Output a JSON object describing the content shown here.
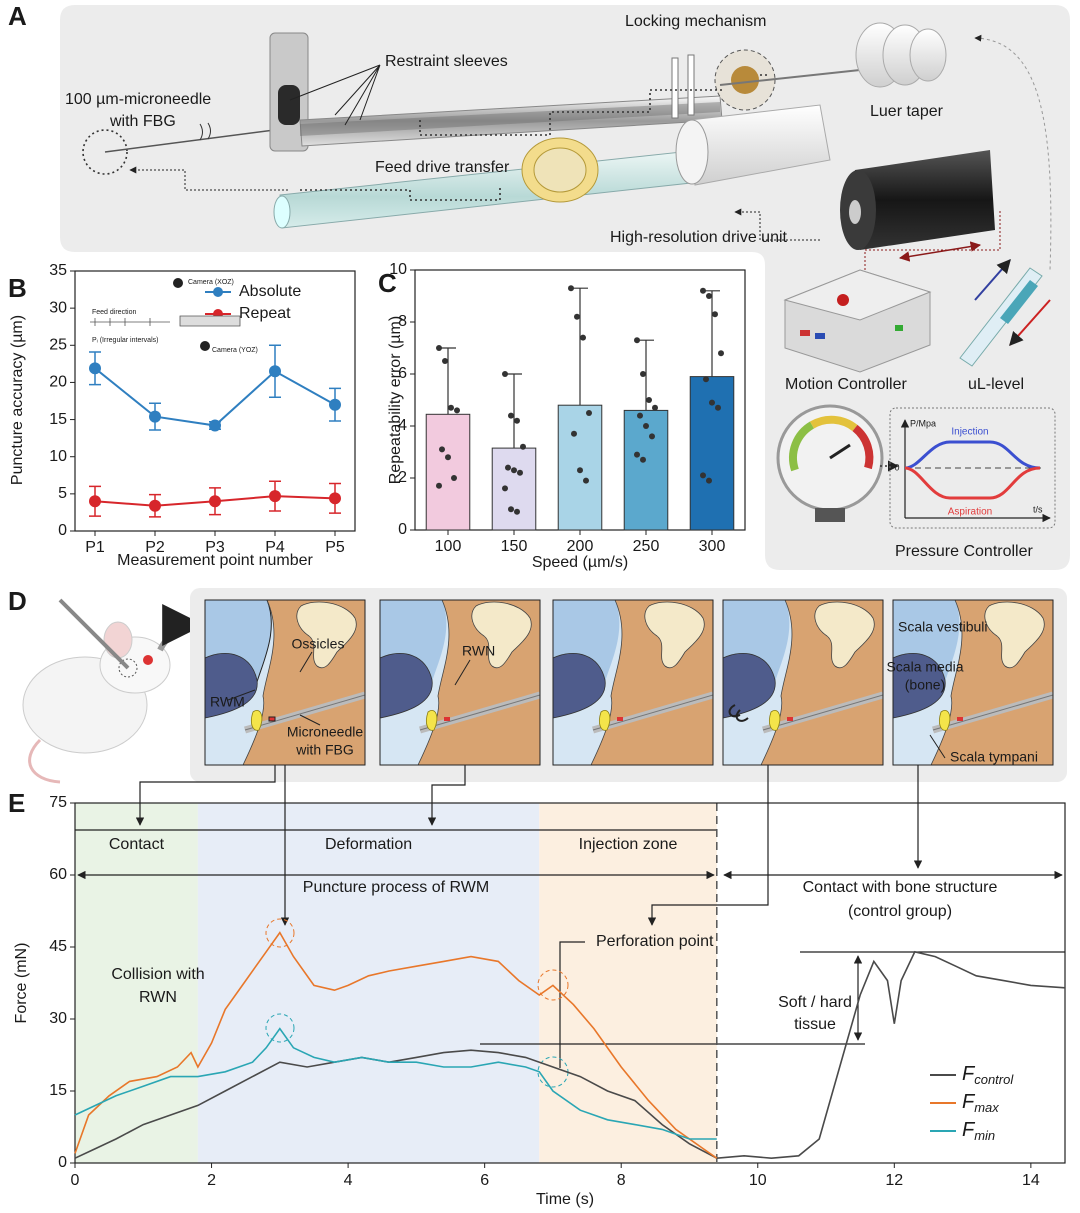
{
  "panel_a": {
    "label": "A",
    "microneedle": [
      "100 µm-microneedle",
      "with FBG"
    ],
    "restraint": "Restraint sleeves",
    "locking": "Locking mechanism",
    "luer": "Luer taper",
    "feed": "Feed drive transfer",
    "drive": "High-resolution drive unit",
    "motion": "Motion Controller",
    "ul": "uL-level",
    "pressure": "Pressure Controller",
    "inset": {
      "y_label": "P/Mpa",
      "x_label": "t/s",
      "zero": "0",
      "injection": "Injection",
      "aspiration": "Aspiration"
    }
  },
  "panel_d": {
    "label": "D",
    "ossicles": "Ossicles",
    "rwm": "RWM",
    "microneedle": [
      "Microneedle",
      "with FBG"
    ],
    "rwn": "RWN",
    "vestibuli": "Scala vestibuli",
    "media": [
      "Scala media",
      "(bone)"
    ],
    "tympani": "Scala tympani"
  },
  "chart_data": [
    {
      "panel": "B",
      "type": "line",
      "x_label": "Measurement point number",
      "y_label": "Puncture accuracy (µm)",
      "categories": [
        "P1",
        "P2",
        "P3",
        "P4",
        "P5"
      ],
      "series": [
        {
          "name": "Absolute",
          "color": "#2f7fc0",
          "values": [
            21.9,
            15.4,
            14.2,
            21.5,
            17.0
          ],
          "errors": [
            2.2,
            1.8,
            0.5,
            3.5,
            2.2
          ]
        },
        {
          "name": "Repeat",
          "color": "#d7262b",
          "values": [
            4.0,
            3.4,
            4.0,
            4.7,
            4.4
          ],
          "errors": [
            2.0,
            1.5,
            1.8,
            2.0,
            2.0
          ]
        }
      ],
      "ylim": [
        0,
        35
      ],
      "yticks": [
        0,
        5,
        10,
        15,
        20,
        25,
        30,
        35
      ],
      "inset": [
        "Camera (XOZ)",
        "Camera (YOZ)",
        "Feed direction",
        "Pᵢ (Irregular intervals)"
      ]
    },
    {
      "panel": "C",
      "type": "bar",
      "x_label": "Speed (µm/s)",
      "y_label": "Repeatability error (µm)",
      "categories": [
        "100",
        "150",
        "200",
        "250",
        "300"
      ],
      "values": [
        4.45,
        3.15,
        4.8,
        4.6,
        5.9
      ],
      "errors": [
        2.55,
        2.85,
        4.5,
        2.7,
        3.3
      ],
      "colors": [
        "#f2cade",
        "#dedaef",
        "#a9d4e7",
        "#5ba8cd",
        "#1f70b1"
      ],
      "points": [
        [
          7.0,
          6.5,
          4.7,
          4.6,
          3.1,
          2.8,
          2.0,
          1.7
        ],
        [
          6.0,
          4.4,
          4.2,
          3.2,
          2.4,
          2.3,
          2.2,
          1.6,
          0.8,
          0.7
        ],
        [
          9.3,
          8.2,
          7.4,
          4.5,
          3.7,
          2.3,
          1.9
        ],
        [
          7.3,
          6.0,
          5.0,
          4.7,
          4.4,
          4.0,
          3.6,
          2.9,
          2.7
        ],
        [
          9.2,
          9.0,
          8.3,
          6.8,
          5.8,
          4.9,
          4.7,
          2.1,
          1.9
        ]
      ],
      "ylim": [
        0,
        10
      ],
      "yticks": [
        0,
        2,
        4,
        6,
        8,
        10
      ]
    },
    {
      "panel": "E",
      "type": "line",
      "x_label": "Time (s)",
      "y_label": "Force (mN)",
      "symbol": "F",
      "xlim": [
        0,
        14.5
      ],
      "xticks": [
        0,
        2,
        4,
        6,
        8,
        10,
        12,
        14
      ],
      "ylim": [
        0,
        75
      ],
      "yticks": [
        0,
        15,
        30,
        45,
        60,
        75
      ],
      "zones": [
        {
          "label": "Contact",
          "start": 0,
          "end": 1.8,
          "color": "#e9f3e5"
        },
        {
          "label": "Deformation",
          "start": 1.8,
          "end": 6.8,
          "color": "#e7edf7"
        },
        {
          "label": "Injection zone",
          "start": 6.8,
          "end": 9.4,
          "color": "#fcefe0"
        }
      ],
      "annotations": {
        "puncture": "Puncture process of RWM",
        "bone": [
          "Contact with bone structure",
          "(control group)"
        ],
        "collision": [
          "Collision with",
          "RWN"
        ],
        "perforation": "Perforation point",
        "tissue": [
          "Soft / hard",
          "tissue"
        ]
      },
      "series": [
        {
          "name": "control",
          "color": "#4a4a4a",
          "x": [
            0,
            0.3,
            0.6,
            1,
            1.4,
            1.8,
            2.2,
            2.6,
            3,
            3.4,
            3.8,
            4.2,
            4.6,
            5,
            5.4,
            5.8,
            6.2,
            6.6,
            7,
            7.4,
            7.8,
            8.2,
            8.6,
            9,
            9.4,
            9.8,
            10.2,
            10.6,
            10.9,
            11.1,
            11.3,
            11.5,
            11.7,
            11.9,
            12,
            12.1,
            12.3,
            12.6,
            12.9,
            13.2,
            13.6,
            14,
            14.5
          ],
          "values": [
            1,
            3,
            5,
            8,
            10,
            12,
            15,
            18,
            21,
            20,
            21,
            22,
            21,
            22,
            23,
            23.5,
            23,
            22,
            20,
            18,
            15,
            13,
            8,
            4,
            1,
            1.5,
            1,
            1.5,
            5,
            15,
            25,
            35,
            42,
            38,
            29,
            38,
            44,
            43,
            41,
            39,
            38,
            37,
            36.5
          ]
        },
        {
          "name": "max",
          "color": "#e8772a",
          "x": [
            0,
            0.2,
            0.5,
            0.8,
            1.2,
            1.5,
            1.7,
            1.8,
            2,
            2.2,
            2.5,
            2.8,
            3,
            3.2,
            3.5,
            3.8,
            4,
            4.3,
            4.6,
            5,
            5.4,
            5.8,
            6.2,
            6.5,
            6.8,
            7,
            7.3,
            7.6,
            8,
            8.4,
            8.8,
            9.2,
            9.4
          ],
          "values": [
            2,
            10,
            14,
            17,
            18,
            20,
            23,
            20,
            25,
            32,
            38,
            44,
            48,
            43,
            37,
            36,
            37,
            39,
            40,
            41,
            42,
            43,
            42,
            38,
            35,
            37,
            33,
            28,
            20,
            13,
            7,
            3,
            1
          ]
        },
        {
          "name": "min",
          "color": "#2aa6b4",
          "x": [
            0,
            0.3,
            0.6,
            1,
            1.4,
            1.8,
            2.2,
            2.6,
            2.8,
            3,
            3.2,
            3.5,
            3.8,
            4.2,
            4.6,
            5,
            5.4,
            5.8,
            6.2,
            6.6,
            6.8,
            7,
            7.4,
            7.8,
            8.2,
            8.6,
            9,
            9.4
          ],
          "values": [
            10,
            12,
            14,
            16,
            18,
            18,
            19,
            21,
            24,
            28,
            24,
            22,
            21,
            22,
            21,
            21,
            20,
            20,
            21,
            20,
            19,
            15,
            11,
            9,
            8,
            7,
            5,
            5
          ]
        }
      ]
    }
  ]
}
